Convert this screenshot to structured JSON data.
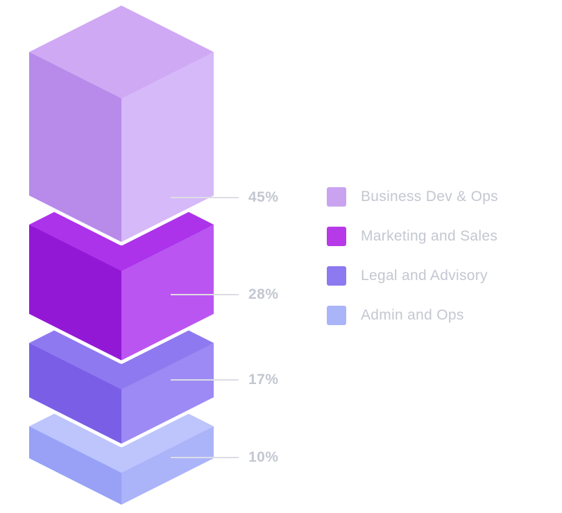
{
  "chart_data": {
    "type": "bar",
    "variant": "isometric-3d-stacked-column-exploded",
    "title": "",
    "unit": "%",
    "legend_position": "right",
    "background": "#ffffff",
    "text_color": "#c4c7d1",
    "leader_line_color": "#dcdde4",
    "segments": [
      {
        "label": "Business Dev & Ops",
        "value": 45,
        "display": "45%",
        "colors": {
          "top": "#cfa9f4",
          "left": "#b88ae9",
          "right": "#d6b9f8",
          "legend": "#c9a3f0"
        }
      },
      {
        "label": "Marketing and Sales",
        "value": 28,
        "display": "28%",
        "colors": {
          "top": "#ac33ea",
          "left": "#9318d6",
          "right": "#bb55f2",
          "legend": "#b73ae8"
        }
      },
      {
        "label": "Legal and Advisory",
        "value": 17,
        "display": "17%",
        "colors": {
          "top": "#8f79f0",
          "left": "#7a5fe6",
          "right": "#9d8af4",
          "legend": "#8d79f0"
        }
      },
      {
        "label": "Admin and Ops",
        "value": 10,
        "display": "10%",
        "colors": {
          "top": "#bdc5fc",
          "left": "#98a1f6",
          "right": "#abb3f9",
          "legend": "#aab4f8"
        }
      }
    ]
  }
}
